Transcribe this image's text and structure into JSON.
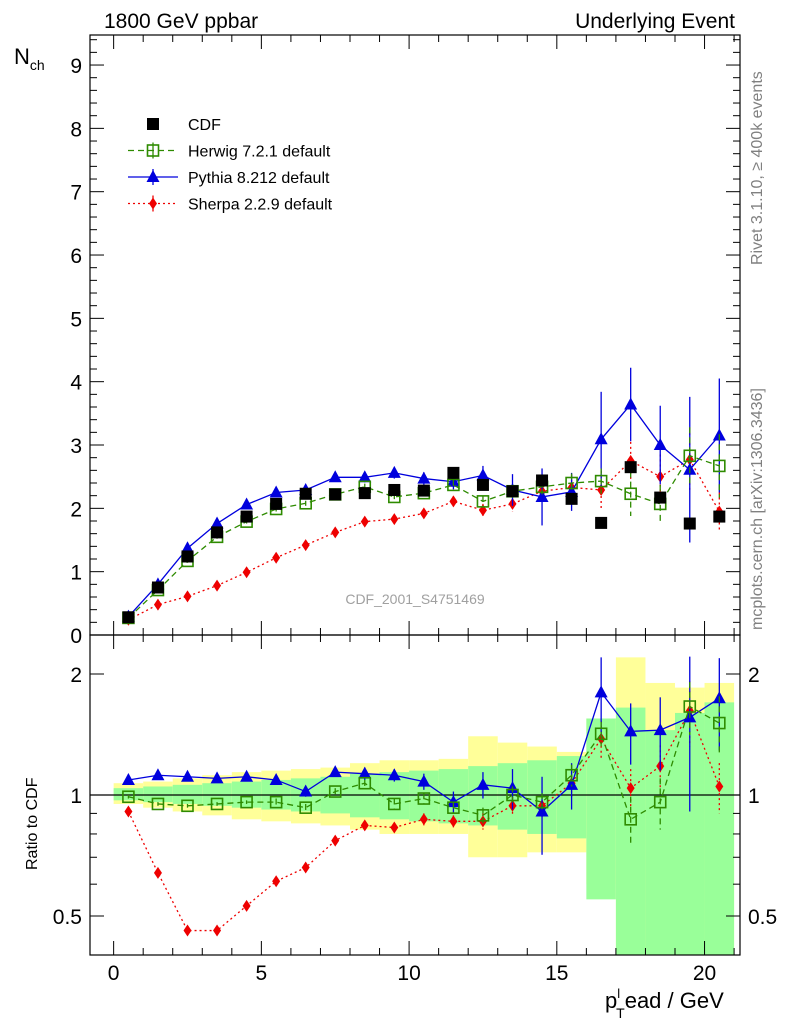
{
  "header": {
    "left_title": "1800 GeV ppbar",
    "right_title": "Underlying Event"
  },
  "side_labels": {
    "rivet": "Rivet 3.1.10, ≥ 400k events",
    "mcplots": "mcplots.cern.ch [arXiv:1306.3436]"
  },
  "watermark": "CDF_2001_S4751469",
  "colors": {
    "data": "#000000",
    "herwig": "#2e8b00",
    "pythia": "#0000dd",
    "sherpa": "#ee0000",
    "band_inner": "#99ff99",
    "band_outer": "#ffff99"
  },
  "chart_data": [
    {
      "type": "line",
      "panel": "main",
      "ylabel": "N",
      "ylabel_sub": "ch",
      "ylim": [
        0,
        9.5
      ],
      "xlim": [
        -0.8,
        21.2
      ],
      "y_ticks": [
        "0",
        "1",
        "2",
        "3",
        "4",
        "5",
        "6",
        "7",
        "8",
        "9"
      ],
      "x": [
        0.5,
        1.5,
        2.5,
        3.5,
        4.5,
        5.5,
        6.5,
        7.5,
        8.5,
        9.5,
        10.5,
        11.5,
        12.5,
        13.5,
        14.5,
        15.5,
        16.5,
        17.5,
        18.5,
        19.5,
        20.5
      ],
      "legend": [
        "CDF",
        "Herwig 7.2.1 default",
        "Pythia 8.212 default",
        "Sherpa 2.2.9 default"
      ],
      "series": [
        {
          "name": "CDF",
          "values": [
            0.28,
            0.75,
            1.24,
            1.62,
            1.87,
            2.07,
            2.23,
            2.22,
            2.24,
            2.29,
            2.28,
            2.56,
            2.37,
            2.27,
            2.44,
            2.15,
            1.77,
            2.65,
            2.17,
            1.76,
            1.87
          ]
        },
        {
          "name": "Herwig 7.2.1 default",
          "values": [
            0.27,
            0.71,
            1.17,
            1.55,
            1.79,
            1.99,
            2.08,
            2.22,
            2.34,
            2.18,
            2.24,
            2.37,
            2.11,
            2.27,
            2.34,
            2.4,
            2.43,
            2.23,
            2.07,
            2.83,
            2.67
          ],
          "errors": [
            0.02,
            0.02,
            0.03,
            0.03,
            0.03,
            0.04,
            0.04,
            0.05,
            0.05,
            0.06,
            0.07,
            0.08,
            0.09,
            0.1,
            0.12,
            0.15,
            0.2,
            0.35,
            0.3,
            0.45,
            0.5
          ]
        },
        {
          "name": "Pythia 8.212 default",
          "values": [
            0.29,
            0.8,
            1.37,
            1.76,
            2.06,
            2.25,
            2.29,
            2.49,
            2.49,
            2.56,
            2.47,
            2.42,
            2.52,
            2.29,
            2.18,
            2.26,
            3.09,
            3.64,
            3.0,
            2.61,
            3.15
          ],
          "errors": [
            0.02,
            0.02,
            0.03,
            0.03,
            0.04,
            0.05,
            0.06,
            0.07,
            0.08,
            0.09,
            0.1,
            0.12,
            0.15,
            0.25,
            0.45,
            0.3,
            0.75,
            0.58,
            0.62,
            1.15,
            0.9
          ]
        },
        {
          "name": "Sherpa 2.2.9 default",
          "values": [
            0.24,
            0.48,
            0.61,
            0.78,
            0.99,
            1.22,
            1.42,
            1.62,
            1.79,
            1.83,
            1.92,
            2.11,
            1.97,
            2.07,
            2.27,
            2.33,
            2.29,
            2.75,
            2.5,
            2.77,
            1.95
          ],
          "errors": [
            0.01,
            0.02,
            0.02,
            0.02,
            0.03,
            0.03,
            0.04,
            0.05,
            0.05,
            0.06,
            0.07,
            0.08,
            0.1,
            0.12,
            0.15,
            0.2,
            0.3,
            0.3,
            0.35,
            0.5,
            0.3
          ]
        }
      ]
    },
    {
      "type": "line",
      "panel": "ratio",
      "ylabel": "Ratio to CDF",
      "xlabel": "p",
      "xlabel_sub": "T",
      "xlabel_sup": "l",
      "xlabel_rest": "ead / GeV",
      "ylim": [
        0.42,
        2.3
      ],
      "xlim": [
        -0.8,
        21.2
      ],
      "x_ticks": [
        "0",
        "5",
        "10",
        "15",
        "20"
      ],
      "y_ticks": [
        "0.5",
        "1",
        "2"
      ],
      "x": [
        0.5,
        1.5,
        2.5,
        3.5,
        4.5,
        5.5,
        6.5,
        7.5,
        8.5,
        9.5,
        10.5,
        11.5,
        12.5,
        13.5,
        14.5,
        15.5,
        16.5,
        17.5,
        18.5,
        19.5,
        20.5
      ],
      "band_inner": [
        [
          0.97,
          1.04
        ],
        [
          0.96,
          1.05
        ],
        [
          0.95,
          1.06
        ],
        [
          0.94,
          1.07
        ],
        [
          0.93,
          1.08
        ],
        [
          0.92,
          1.09
        ],
        [
          0.91,
          1.1
        ],
        [
          0.9,
          1.11
        ],
        [
          0.88,
          1.13
        ],
        [
          0.87,
          1.14
        ],
        [
          0.86,
          1.15
        ],
        [
          0.85,
          1.16
        ],
        [
          0.84,
          1.18
        ],
        [
          0.82,
          1.2
        ],
        [
          0.8,
          1.22
        ],
        [
          0.78,
          1.25
        ],
        [
          0.55,
          1.55
        ],
        [
          0.3,
          1.65
        ],
        [
          0.3,
          1.45
        ],
        [
          0.3,
          1.6
        ],
        [
          0.3,
          1.7
        ]
      ],
      "band_outer": [
        [
          0.95,
          1.07
        ],
        [
          0.93,
          1.08
        ],
        [
          0.91,
          1.1
        ],
        [
          0.89,
          1.12
        ],
        [
          0.87,
          1.14
        ],
        [
          0.86,
          1.15
        ],
        [
          0.85,
          1.16
        ],
        [
          0.84,
          1.17
        ],
        [
          0.82,
          1.2
        ],
        [
          0.8,
          1.22
        ],
        [
          0.8,
          1.22
        ],
        [
          0.8,
          1.23
        ],
        [
          0.7,
          1.4
        ],
        [
          0.7,
          1.35
        ],
        [
          0.72,
          1.32
        ],
        [
          0.72,
          1.28
        ],
        [
          0.6,
          1.55
        ],
        [
          0.3,
          2.2
        ],
        [
          0.3,
          1.9
        ],
        [
          0.3,
          1.85
        ],
        [
          0.3,
          1.9
        ]
      ],
      "series": [
        {
          "name": "Herwig 7.2.1 default",
          "values": [
            0.99,
            0.95,
            0.94,
            0.95,
            0.96,
            0.96,
            0.93,
            1.02,
            1.07,
            0.95,
            0.98,
            0.93,
            0.89,
            1.0,
            0.96,
            1.12,
            1.42,
            0.87,
            0.96,
            1.66,
            1.51
          ],
          "errors": [
            0.01,
            0.01,
            0.01,
            0.01,
            0.01,
            0.02,
            0.02,
            0.02,
            0.02,
            0.03,
            0.03,
            0.03,
            0.04,
            0.05,
            0.05,
            0.07,
            0.1,
            0.12,
            0.14,
            0.25,
            0.25
          ]
        },
        {
          "name": "Pythia 8.212 default",
          "values": [
            1.09,
            1.12,
            1.11,
            1.1,
            1.11,
            1.09,
            1.02,
            1.14,
            1.13,
            1.12,
            1.08,
            0.96,
            1.06,
            1.04,
            0.91,
            1.06,
            1.8,
            1.44,
            1.45,
            1.56,
            1.74
          ],
          "errors": [
            0.01,
            0.01,
            0.02,
            0.02,
            0.02,
            0.02,
            0.03,
            0.03,
            0.04,
            0.04,
            0.05,
            0.06,
            0.08,
            0.12,
            0.2,
            0.14,
            0.4,
            0.25,
            0.3,
            0.65,
            0.45
          ]
        },
        {
          "name": "Sherpa 2.2.9 default",
          "values": [
            0.91,
            0.64,
            0.46,
            0.46,
            0.53,
            0.61,
            0.66,
            0.77,
            0.84,
            0.83,
            0.87,
            0.86,
            0.86,
            0.94,
            0.94,
            1.07,
            1.38,
            1.04,
            1.18,
            1.62,
            1.05
          ],
          "errors": [
            0.005,
            0.01,
            0.01,
            0.01,
            0.01,
            0.01,
            0.01,
            0.02,
            0.02,
            0.02,
            0.03,
            0.03,
            0.04,
            0.05,
            0.06,
            0.08,
            0.15,
            0.12,
            0.15,
            0.3,
            0.15
          ]
        }
      ]
    }
  ]
}
